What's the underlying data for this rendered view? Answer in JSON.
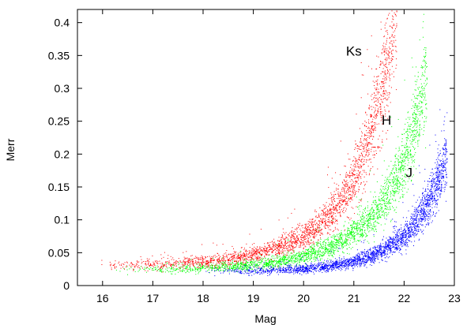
{
  "chart_data": {
    "type": "scatter",
    "title": "",
    "xlabel": "Mag",
    "ylabel": "Merr",
    "xlim": [
      15.5,
      23
    ],
    "ylim": [
      0,
      0.42
    ],
    "xticks": [
      16,
      17,
      18,
      19,
      20,
      21,
      22,
      23
    ],
    "yticks": [
      0,
      0.05,
      0.1,
      0.15,
      0.2,
      0.25,
      0.3,
      0.35,
      0.4
    ],
    "xtick_labels": [
      "16",
      "17",
      "18",
      "19",
      "20",
      "21",
      "22",
      "23"
    ],
    "ytick_labels": [
      "0",
      "0.05",
      "0.1",
      "0.15",
      "0.2",
      "0.25",
      "0.3",
      "0.35",
      "0.4"
    ],
    "grid": false,
    "legend": "none",
    "series": [
      {
        "name": "Ks",
        "color": "#ff0000",
        "mag_range": [
          15.7,
          21.85
        ],
        "x": [
          15.8,
          16.5,
          17.0,
          17.5,
          18.0,
          18.5,
          19.0,
          19.5,
          20.0,
          20.3,
          20.6,
          20.9,
          21.1,
          21.3,
          21.5,
          21.7,
          21.8
        ],
        "y": [
          0.032,
          0.032,
          0.033,
          0.034,
          0.036,
          0.04,
          0.047,
          0.058,
          0.075,
          0.092,
          0.115,
          0.15,
          0.185,
          0.225,
          0.28,
          0.35,
          0.41
        ]
      },
      {
        "name": "H",
        "color": "#00ff00",
        "mag_range": [
          16.2,
          22.45
        ],
        "x": [
          16.3,
          17.0,
          17.5,
          18.0,
          18.5,
          19.0,
          19.5,
          20.0,
          20.5,
          20.8,
          21.1,
          21.4,
          21.6,
          21.8,
          22.0,
          22.2,
          22.4
        ],
        "y": [
          0.024,
          0.025,
          0.026,
          0.027,
          0.029,
          0.032,
          0.037,
          0.045,
          0.058,
          0.07,
          0.087,
          0.11,
          0.13,
          0.155,
          0.19,
          0.24,
          0.31
        ]
      },
      {
        "name": "J",
        "color": "#0000ff",
        "mag_range": [
          18.0,
          22.85
        ],
        "x": [
          18.0,
          18.5,
          19.0,
          19.5,
          20.0,
          20.5,
          21.0,
          21.3,
          21.6,
          21.9,
          22.1,
          22.3,
          22.5,
          22.7,
          22.8
        ],
        "y": [
          0.022,
          0.022,
          0.023,
          0.024,
          0.026,
          0.03,
          0.037,
          0.044,
          0.055,
          0.07,
          0.085,
          0.105,
          0.13,
          0.165,
          0.19
        ]
      }
    ],
    "annotations": [
      {
        "text": "Ks",
        "x": 21.0,
        "y": 0.35
      },
      {
        "text": "H",
        "x": 21.65,
        "y": 0.245
      },
      {
        "text": "J",
        "x": 22.1,
        "y": 0.165
      }
    ]
  }
}
